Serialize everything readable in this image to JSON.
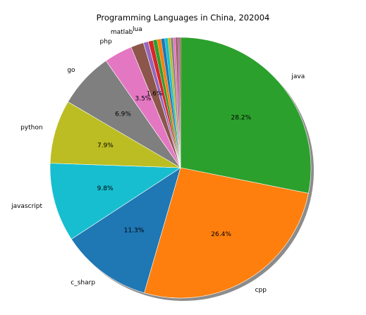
{
  "chart_data": {
    "type": "pie",
    "title": "Programming Languages in China, 202004",
    "shadow": true,
    "start_angle_deg": 90,
    "direction": "clockwise",
    "slices": [
      {
        "label": "java",
        "value": 28.2,
        "pct_label": "28.2%",
        "color": "#2ca02c"
      },
      {
        "label": "cpp",
        "value": 26.4,
        "pct_label": "26.4%",
        "color": "#ff7f0e"
      },
      {
        "label": "c_sharp",
        "value": 11.3,
        "pct_label": "11.3%",
        "color": "#1f77b4"
      },
      {
        "label": "javascript",
        "value": 9.8,
        "pct_label": "9.8%",
        "color": "#17becf"
      },
      {
        "label": "python",
        "value": 7.9,
        "pct_label": "7.9%",
        "color": "#bcbd22"
      },
      {
        "label": "go",
        "value": 6.9,
        "pct_label": "6.9%",
        "color": "#7f7f7f"
      },
      {
        "label": "php",
        "value": 3.5,
        "pct_label": "3.5%",
        "color": "#e377c2"
      },
      {
        "label": "matlab",
        "value": 1.6,
        "pct_label": "1.6%",
        "color": "#8c564b"
      },
      {
        "label": "lua",
        "value": 0.6,
        "pct_label": "",
        "color": "#9467bd"
      },
      {
        "label": "",
        "value": 0.6,
        "pct_label": "",
        "color": "#d62728"
      },
      {
        "label": "",
        "value": 0.5,
        "pct_label": "",
        "color": "#2ca02c"
      },
      {
        "label": "",
        "value": 0.5,
        "pct_label": "",
        "color": "#ff7f0e"
      },
      {
        "label": "",
        "value": 0.45,
        "pct_label": "",
        "color": "#1f77b4"
      },
      {
        "label": "",
        "value": 0.4,
        "pct_label": "",
        "color": "#17becf"
      },
      {
        "label": "",
        "value": 0.35,
        "pct_label": "",
        "color": "#bcbd22"
      },
      {
        "label": "",
        "value": 0.3,
        "pct_label": "",
        "color": "#7f7f7f"
      },
      {
        "label": "",
        "value": 0.3,
        "pct_label": "",
        "color": "#e377c2"
      },
      {
        "label": "",
        "value": 0.25,
        "pct_label": "",
        "color": "#8c564b"
      },
      {
        "label": "",
        "value": 0.2,
        "pct_label": "",
        "color": "#9467bd"
      },
      {
        "label": "",
        "value": 0.15,
        "pct_label": "",
        "color": "#d62728"
      }
    ]
  }
}
